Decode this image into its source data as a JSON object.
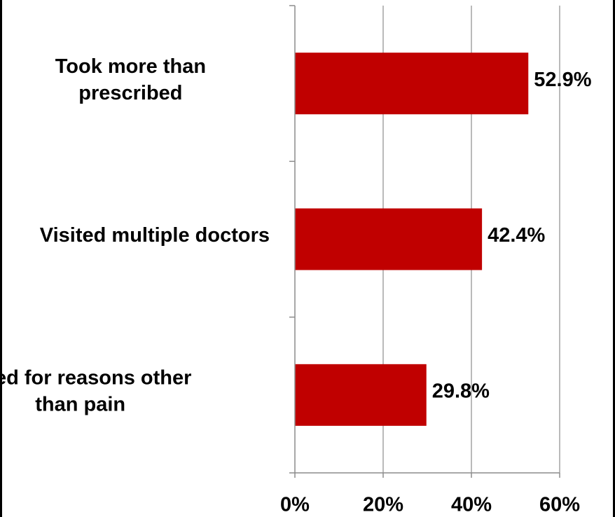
{
  "chart_data": {
    "type": "bar",
    "orientation": "horizontal",
    "categories": [
      [
        "Took more than",
        "prescribed"
      ],
      [
        "Visited multiple doctors"
      ],
      [
        "Used for reasons other",
        "than pain"
      ]
    ],
    "values": [
      52.9,
      42.4,
      29.8
    ],
    "data_labels": [
      "52.9%",
      "42.4%",
      "29.8%"
    ],
    "xlim": [
      0,
      60
    ],
    "x_ticks": [
      0,
      20,
      40,
      60
    ],
    "x_tick_labels": [
      "0%",
      "20%",
      "40%",
      "60%"
    ],
    "title": "",
    "xlabel": "",
    "ylabel": "",
    "grid": "vertical",
    "legend": "none",
    "colors": {
      "bar": "#C00000",
      "grid": "#8C8C8C",
      "axis": "#8C8C8C",
      "text": "#000000"
    }
  }
}
